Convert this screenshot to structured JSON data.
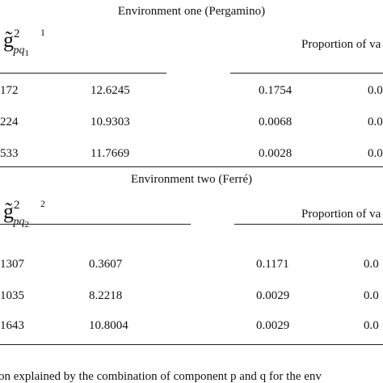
{
  "sections": [
    {
      "title": "Environment one (Pergamino)",
      "header": {
        "symbol": "g̃",
        "sup": "2",
        "sub": "pq",
        "sub_index": "1",
        "note": "1",
        "proportion": "Proportion of va"
      },
      "rows": [
        [
          "172",
          "12.6245",
          "0.1754",
          "0.0"
        ],
        [
          "224",
          "10.9303",
          "0.0068",
          "0.0"
        ],
        [
          "533",
          "11.7669",
          "0.0028",
          "0.0"
        ]
      ]
    },
    {
      "title": "Environment two (Ferré)",
      "header": {
        "symbol": "g̃",
        "sup": "2",
        "sub": "pq",
        "sub_index": "2",
        "note": "2",
        "proportion": "Proportion of va"
      },
      "rows": [
        [
          "1307",
          "0.3607",
          "0.1171",
          "0.0"
        ],
        [
          "1035",
          "8.2218",
          "0.0029",
          "0.0"
        ],
        [
          "1643",
          "10.8004",
          "0.0029",
          "0.0"
        ]
      ]
    }
  ],
  "footnote": "on explained by the combination of component p and q for the env"
}
